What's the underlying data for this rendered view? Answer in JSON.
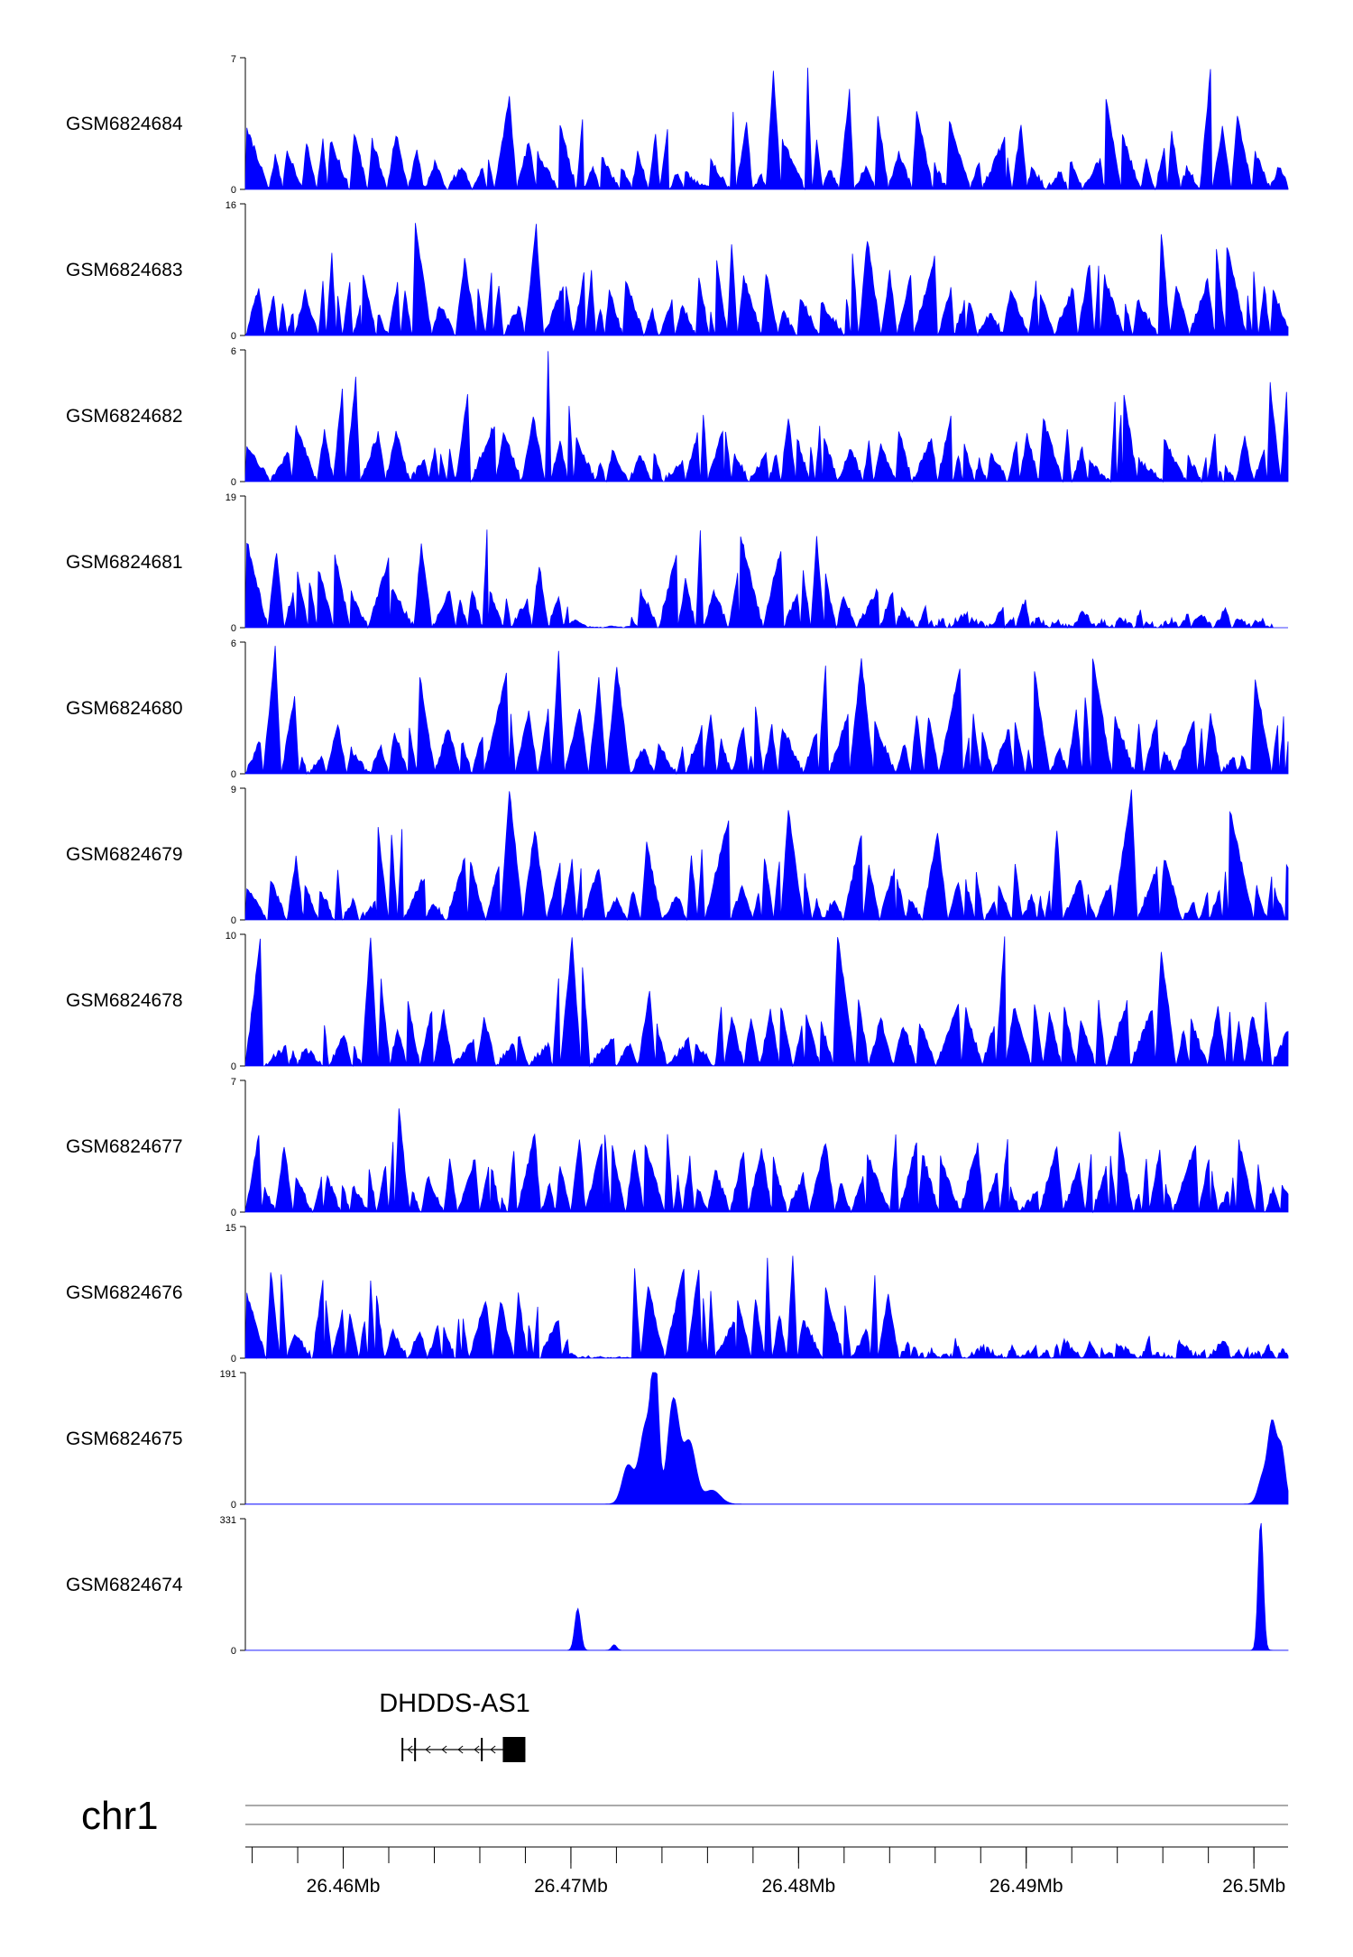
{
  "chart_data": {
    "type": "area",
    "title": "",
    "chromosome": "chr1",
    "x_range_mb": [
      26.4557,
      26.5015
    ],
    "x_ticks": [
      {
        "value": 26.46,
        "label": "26.46Mb"
      },
      {
        "value": 26.47,
        "label": "26.47Mb"
      },
      {
        "value": 26.48,
        "label": "26.48Mb"
      },
      {
        "value": 26.49,
        "label": "26.49Mb"
      },
      {
        "value": 26.5,
        "label": "26.5Mb"
      }
    ],
    "minor_tick_step_mb": 0.002,
    "gene": {
      "name": "DHDDS-AS1",
      "start_mb": 26.4626,
      "end_mb": 26.468,
      "strand": "-"
    },
    "colors": {
      "fill": "#0000ff",
      "axis": "#000000",
      "grid": "#555555"
    },
    "tracks": [
      {
        "name": "GSM6824684",
        "ymax": 7,
        "ymin": 0,
        "pattern": "spiky",
        "seed": 11,
        "base": 0.35,
        "breaks": 0
      },
      {
        "name": "GSM6824683",
        "ymax": 16,
        "ymin": 0,
        "pattern": "triangles",
        "seed": 23,
        "base": 0.3,
        "breaks": 0
      },
      {
        "name": "GSM6824682",
        "ymax": 6,
        "ymin": 0,
        "pattern": "spiky",
        "seed": 37,
        "base": 0.45,
        "breaks": 0
      },
      {
        "name": "GSM6824681",
        "ymax": 19,
        "ymin": 0,
        "pattern": "broad-left",
        "seed": 41,
        "base": 0.3,
        "breaks": 1
      },
      {
        "name": "GSM6824680",
        "ymax": 6,
        "ymin": 0,
        "pattern": "spiky",
        "seed": 53,
        "base": 0.4,
        "breaks": 0
      },
      {
        "name": "GSM6824679",
        "ymax": 9,
        "ymin": 0,
        "pattern": "spiky",
        "seed": 67,
        "base": 0.33,
        "breaks": 0
      },
      {
        "name": "GSM6824678",
        "ymax": 10,
        "ymin": 0,
        "pattern": "spiky",
        "seed": 79,
        "base": 0.3,
        "breaks": 0
      },
      {
        "name": "GSM6824677",
        "ymax": 7,
        "ymin": 0,
        "pattern": "dense",
        "seed": 83,
        "base": 0.4,
        "breaks": 0
      },
      {
        "name": "GSM6824676",
        "ymax": 15,
        "ymin": 0,
        "pattern": "broad-left",
        "seed": 97,
        "base": 0.33,
        "breaks": 0
      },
      {
        "name": "GSM6824675",
        "ymax": 191,
        "ymin": 0,
        "pattern": "peaks",
        "peaks": [
          {
            "center": 26.4725,
            "height": 55,
            "width": 0.00035
          },
          {
            "center": 26.4733,
            "height": 115,
            "width": 0.0004
          },
          {
            "center": 26.4737,
            "height": 185,
            "width": 0.00022
          },
          {
            "center": 26.4745,
            "height": 150,
            "width": 0.00035
          },
          {
            "center": 26.4752,
            "height": 90,
            "width": 0.0004
          },
          {
            "center": 26.4762,
            "height": 20,
            "width": 0.0005
          },
          {
            "center": 26.5004,
            "height": 40,
            "width": 0.0003
          },
          {
            "center": 26.5008,
            "height": 110,
            "width": 0.00025
          },
          {
            "center": 26.5012,
            "height": 80,
            "width": 0.00025
          }
        ]
      },
      {
        "name": "GSM6824674",
        "ymax": 331,
        "ymin": 0,
        "pattern": "peaks",
        "peaks": [
          {
            "center": 26.4703,
            "height": 105,
            "width": 0.00018
          },
          {
            "center": 26.4719,
            "height": 14,
            "width": 0.00015
          },
          {
            "center": 26.5003,
            "height": 325,
            "width": 0.00016
          }
        ]
      }
    ]
  }
}
